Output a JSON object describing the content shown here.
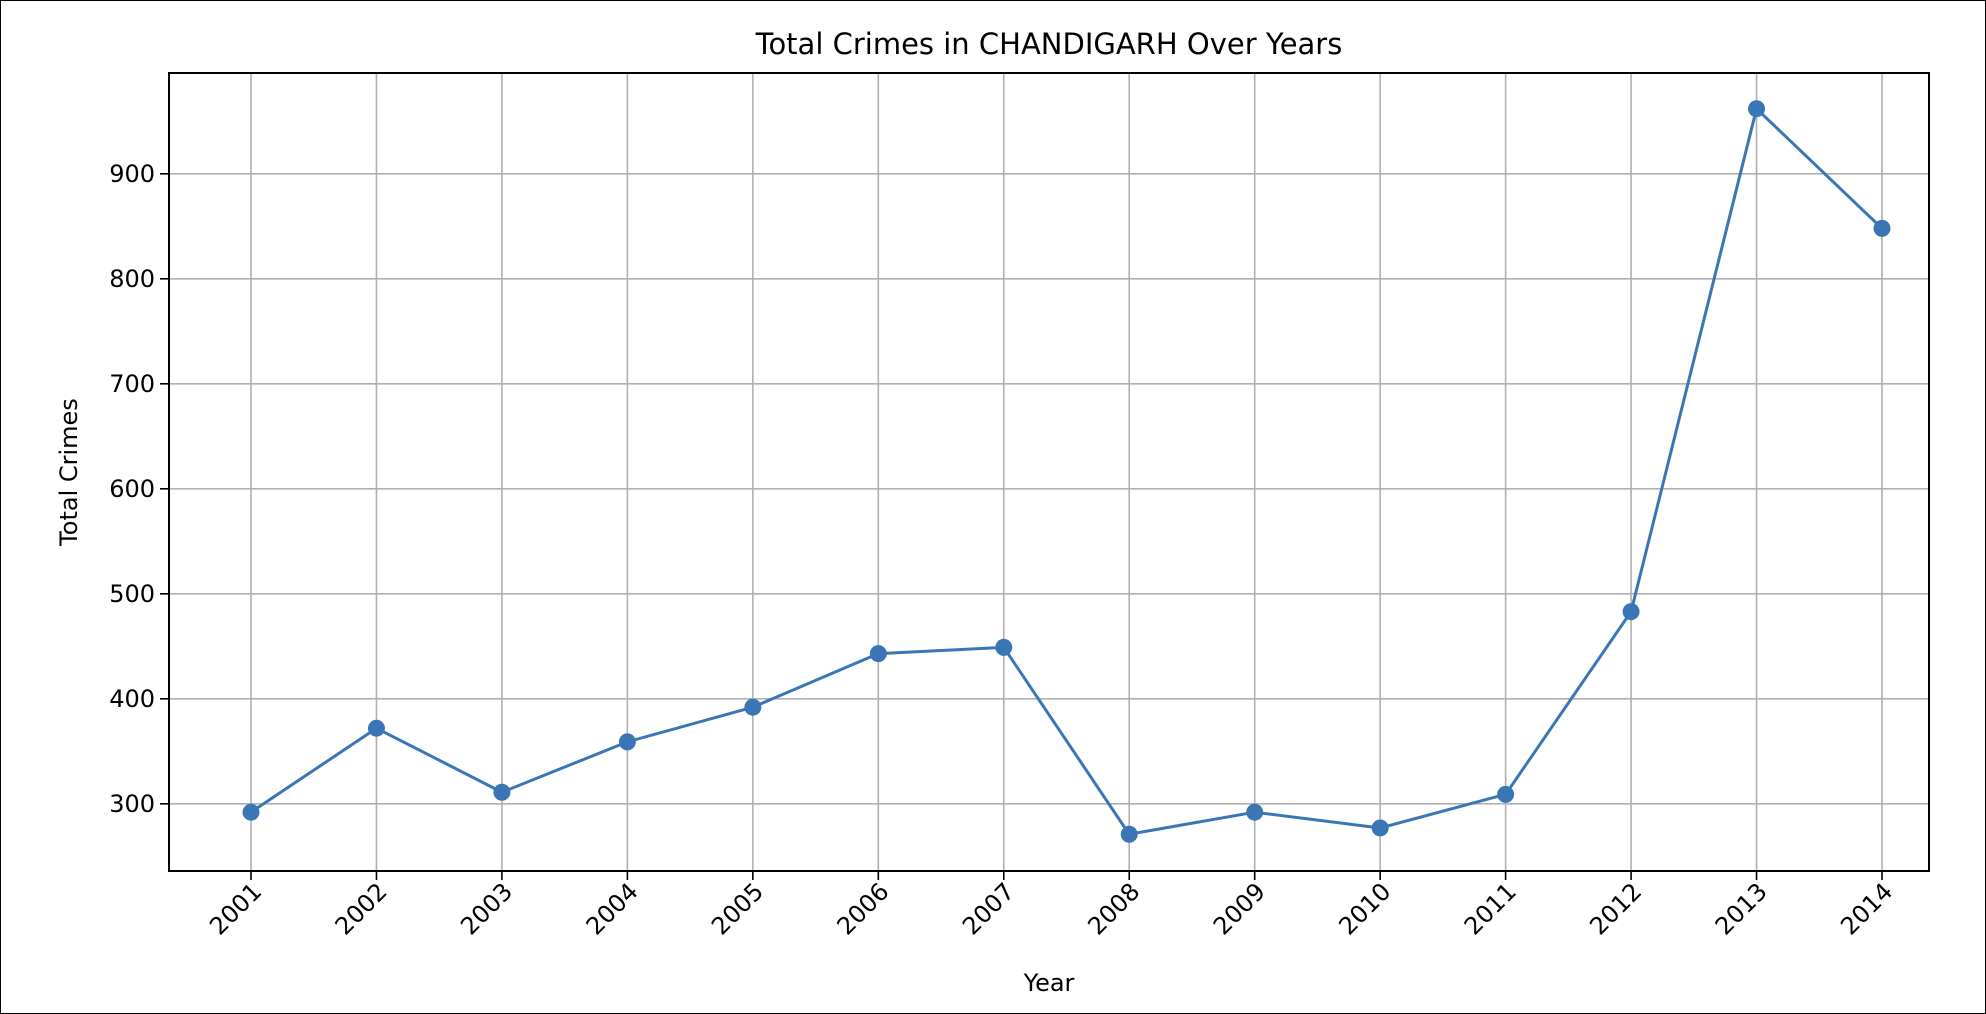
{
  "chart_data": {
    "type": "line",
    "title": "Total Crimes in CHANDIGARH Over Years",
    "xlabel": "Year",
    "ylabel": "Total Crimes",
    "x": [
      "2001",
      "2002",
      "2003",
      "2004",
      "2005",
      "2006",
      "2007",
      "2008",
      "2009",
      "2010",
      "2011",
      "2012",
      "2013",
      "2014"
    ],
    "series": [
      {
        "values": [
          292,
          372,
          311,
          359,
          392,
          443,
          449,
          271,
          292,
          277,
          309,
          483,
          962,
          848
        ],
        "color": "#3a76b5",
        "marker": "circle"
      }
    ],
    "yticks": [
      300,
      400,
      500,
      600,
      700,
      800,
      900
    ],
    "ylim": [
      236,
      996
    ],
    "grid": true,
    "legend": "none"
  }
}
